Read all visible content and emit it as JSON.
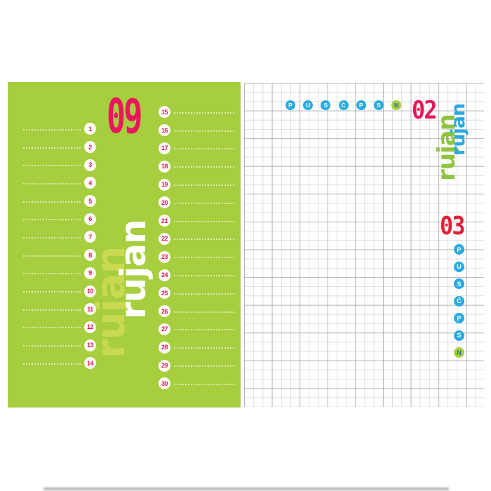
{
  "left_page": {
    "month_number": "09",
    "month_name": "rujan",
    "day_numbers_col1": [
      "1",
      "2",
      "3",
      "4",
      "5",
      "6",
      "7",
      "8",
      "9",
      "10",
      "11",
      "12",
      "13",
      "14"
    ],
    "day_numbers_col2": [
      "15",
      "16",
      "17",
      "18",
      "19",
      "20",
      "21",
      "22",
      "23",
      "24",
      "25",
      "26",
      "27",
      "28",
      "29",
      "30"
    ],
    "colors": {
      "page_background": "#a6ce3e",
      "month_number": "#e8175c",
      "day_number": "#e8175c",
      "day_circle": "#fffdf6",
      "month_name_front": "#ffffff",
      "month_name_back": "#c9da50"
    }
  },
  "right_page": {
    "week_number_top": "02",
    "week_number_middle": "03",
    "month_name": "rujan",
    "day_letters": [
      "P",
      "U",
      "S",
      "Č",
      "P",
      "S",
      "N"
    ],
    "colors": {
      "grid_line": "#cccccc",
      "weekday_circle": "#29abe2",
      "weekday_letter": "#ffffff",
      "sunday_circle": "#a8cf3c",
      "sunday_letter": "#1d71b8",
      "week_number_top": "#ea1659",
      "week_number_middle": "#e32038",
      "month_name_front": "#29abe2",
      "month_name_back": "#8fc43f"
    }
  }
}
